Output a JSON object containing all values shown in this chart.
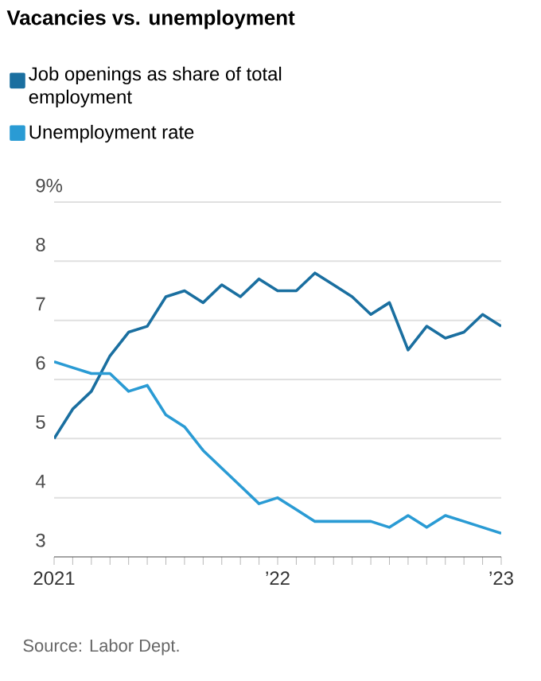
{
  "chart_data": {
    "type": "line",
    "title": "Vacancies vs. unemployment",
    "x": [
      "2021-01",
      "2021-02",
      "2021-03",
      "2021-04",
      "2021-05",
      "2021-06",
      "2021-07",
      "2021-08",
      "2021-09",
      "2021-10",
      "2021-11",
      "2021-12",
      "2022-01",
      "2022-02",
      "2022-03",
      "2022-04",
      "2022-05",
      "2022-06",
      "2022-07",
      "2022-08",
      "2022-09",
      "2022-10",
      "2022-11",
      "2022-12",
      "2023-01"
    ],
    "series": [
      {
        "name": "Job openings as share of total employment",
        "color": "#1a6fa0",
        "values": [
          5.0,
          5.5,
          5.8,
          6.4,
          6.8,
          6.9,
          7.4,
          7.5,
          7.3,
          7.6,
          7.4,
          7.7,
          7.5,
          7.5,
          7.8,
          7.6,
          7.4,
          7.1,
          7.3,
          6.5,
          6.9,
          6.7,
          6.8,
          7.1,
          6.9
        ]
      },
      {
        "name": "Unemployment rate",
        "color": "#2a9bd4",
        "values": [
          6.3,
          6.2,
          6.1,
          6.1,
          5.8,
          5.9,
          5.4,
          5.2,
          4.8,
          4.5,
          4.2,
          3.9,
          4.0,
          3.8,
          3.6,
          3.6,
          3.6,
          3.6,
          3.5,
          3.7,
          3.5,
          3.7,
          3.6,
          3.5,
          3.4
        ]
      }
    ],
    "xlim": [
      "2021-01",
      "2023-01"
    ],
    "xticks": [
      {
        "value": "2021-01",
        "label": "2021"
      },
      {
        "value": "2021-02",
        "label": null
      },
      {
        "value": "2021-03",
        "label": null
      },
      {
        "value": "2021-04",
        "label": null
      },
      {
        "value": "2021-05",
        "label": null
      },
      {
        "value": "2021-06",
        "label": null
      },
      {
        "value": "2021-07",
        "label": null
      },
      {
        "value": "2021-08",
        "label": null
      },
      {
        "value": "2021-09",
        "label": null
      },
      {
        "value": "2021-10",
        "label": null
      },
      {
        "value": "2021-11",
        "label": null
      },
      {
        "value": "2021-12",
        "label": null
      },
      {
        "value": "2022-01",
        "label": "’22"
      },
      {
        "value": "2022-02",
        "label": null
      },
      {
        "value": "2022-03",
        "label": null
      },
      {
        "value": "2022-04",
        "label": null
      },
      {
        "value": "2022-05",
        "label": null
      },
      {
        "value": "2022-06",
        "label": null
      },
      {
        "value": "2022-07",
        "label": null
      },
      {
        "value": "2022-08",
        "label": null
      },
      {
        "value": "2022-09",
        "label": null
      },
      {
        "value": "2022-10",
        "label": null
      },
      {
        "value": "2022-11",
        "label": null
      },
      {
        "value": "2022-12",
        "label": null
      },
      {
        "value": "2023-01",
        "label": "’23"
      }
    ],
    "ylim": [
      3,
      9
    ],
    "yticks": [
      3,
      4,
      5,
      6,
      7,
      8,
      {
        "value": 9,
        "label": "9%"
      }
    ],
    "grid": "y",
    "legend": "top left",
    "marker": "none",
    "line_style": "solid",
    "annotations": [
      "Source: Labor Dept."
    ]
  }
}
